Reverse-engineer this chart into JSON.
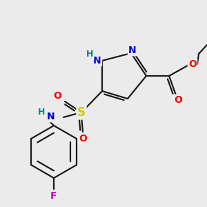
{
  "background_color": "#ebebeb",
  "bond_color": "#1a1a1a",
  "figsize": [
    3.0,
    3.0
  ],
  "dpi": 100,
  "atom_colors": {
    "N": "#0000dd",
    "H": "#008888",
    "O": "#ff0000",
    "S": "#cccc00",
    "F": "#cc00cc",
    "C": "#1a1a1a"
  }
}
